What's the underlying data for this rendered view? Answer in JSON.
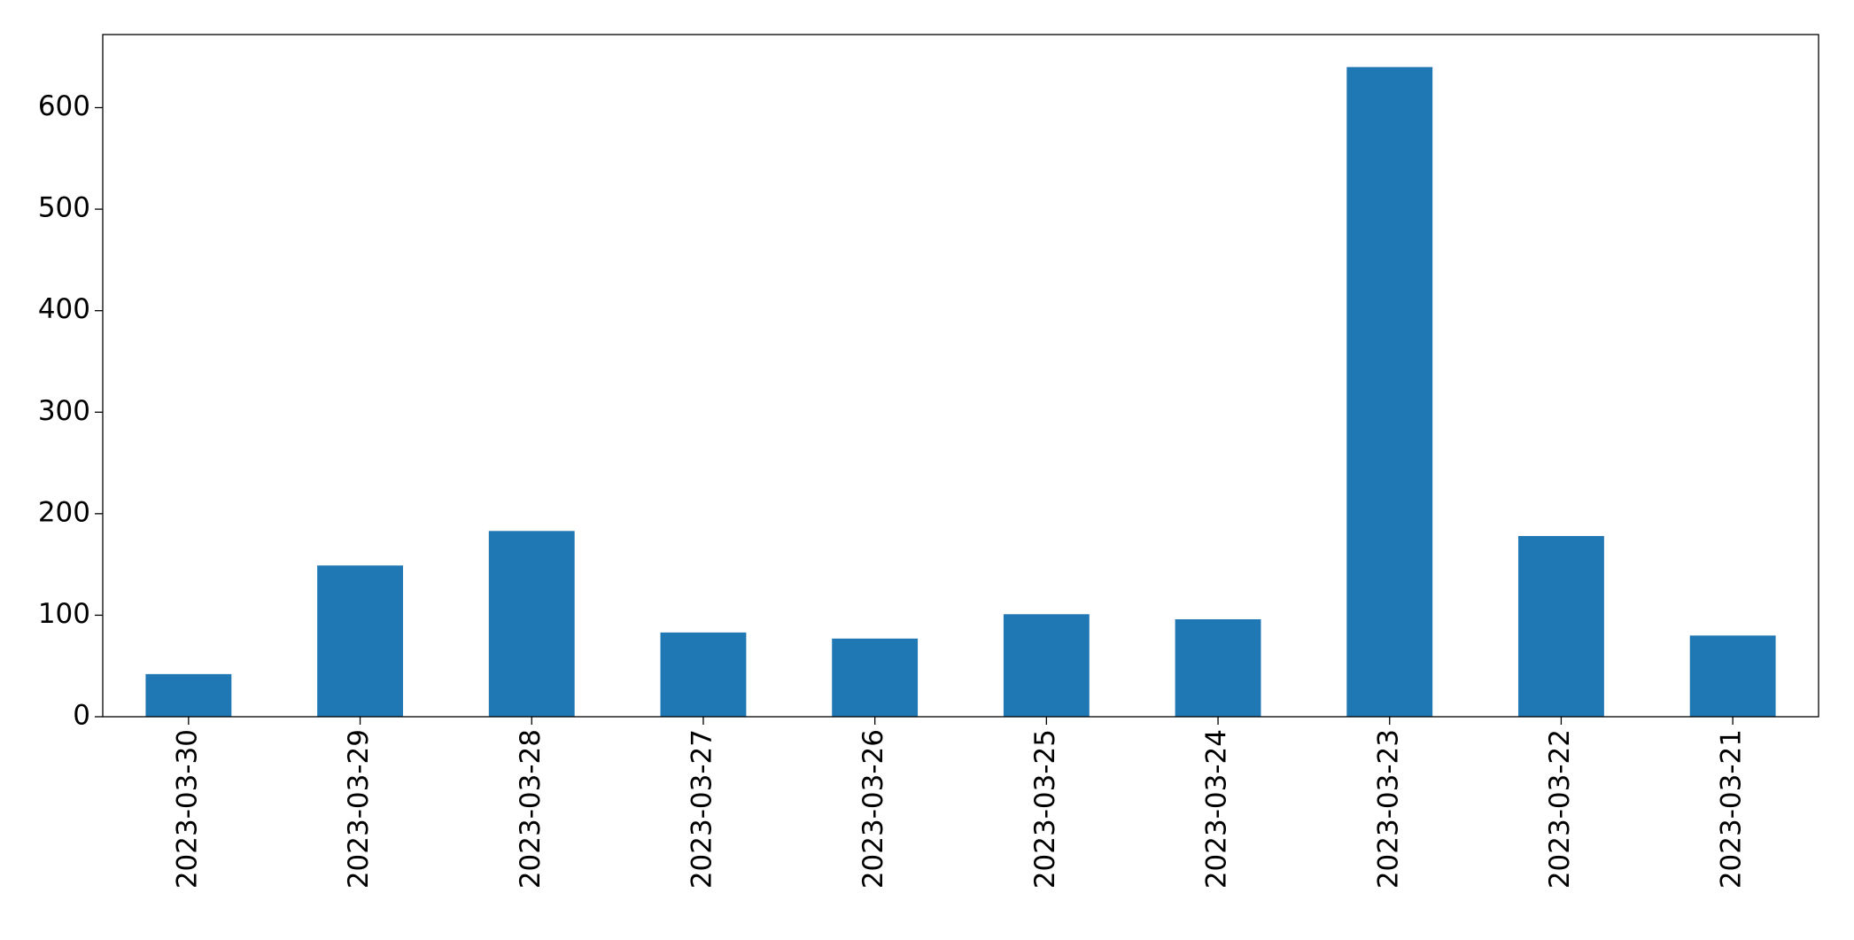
{
  "chart_data": {
    "type": "bar",
    "categories": [
      "2023-03-30",
      "2023-03-29",
      "2023-03-28",
      "2023-03-27",
      "2023-03-26",
      "2023-03-25",
      "2023-03-24",
      "2023-03-23",
      "2023-03-22",
      "2023-03-21"
    ],
    "values": [
      42,
      149,
      183,
      83,
      77,
      101,
      96,
      640,
      178,
      80
    ],
    "color": "#1f77b4",
    "ylim": [
      0,
      672
    ],
    "yticks": [
      0,
      100,
      200,
      300,
      400,
      500,
      600
    ],
    "grid": false
  }
}
